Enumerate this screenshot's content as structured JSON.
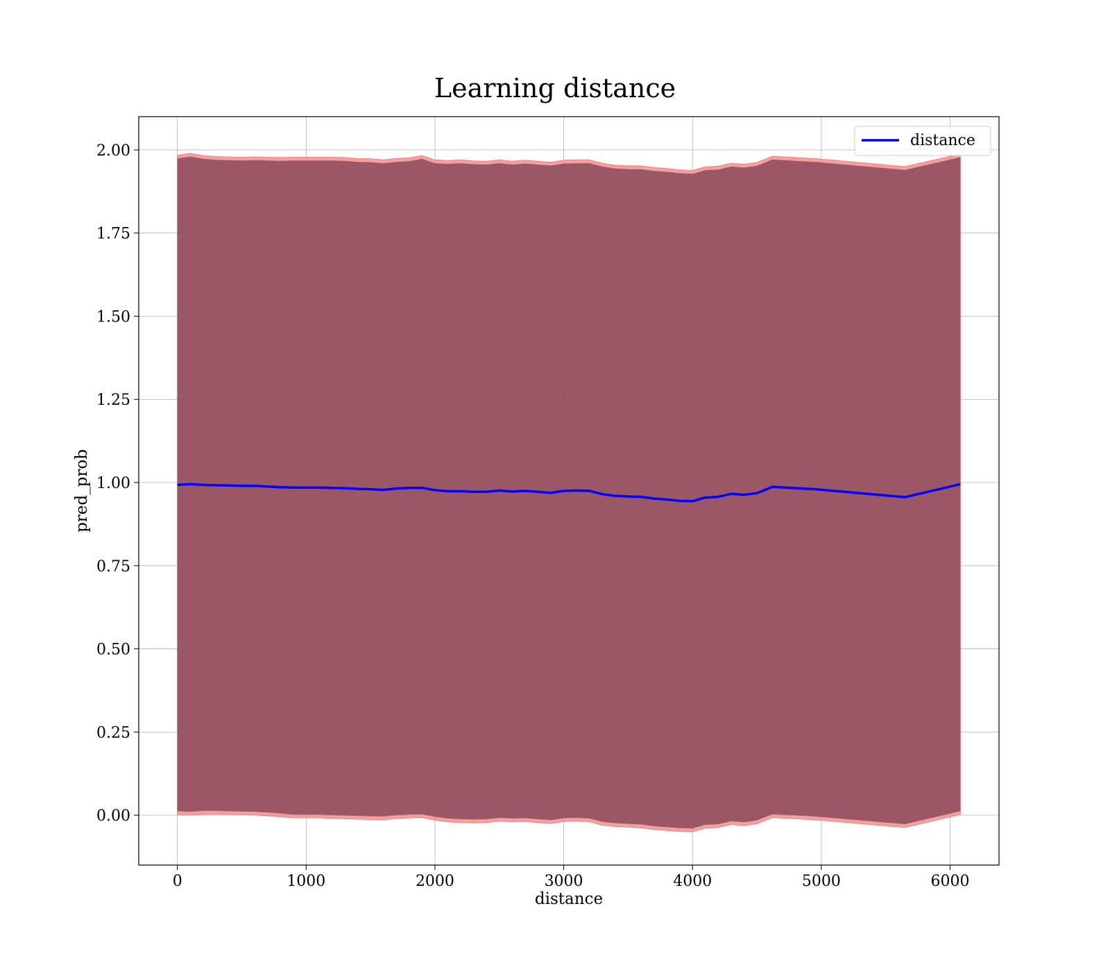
{
  "chart_data": {
    "type": "line",
    "title": "Learning distance",
    "xlabel": "distance",
    "ylabel": "pred_prob",
    "xlim": [
      -300,
      6380
    ],
    "ylim": [
      -0.15,
      2.1
    ],
    "xticks": [
      0,
      1000,
      2000,
      3000,
      4000,
      5000,
      6000
    ],
    "xtick_labels": [
      "0",
      "1000",
      "2000",
      "3000",
      "4000",
      "5000",
      "6000"
    ],
    "yticks": [
      0.0,
      0.25,
      0.5,
      0.75,
      1.0,
      1.25,
      1.5,
      1.75,
      2.0
    ],
    "ytick_labels": [
      "0.00",
      "0.25",
      "0.50",
      "0.75",
      "1.00",
      "1.25",
      "1.50",
      "1.75",
      "2.00"
    ],
    "grid": true,
    "legend": {
      "placement": "top-right",
      "entries": [
        "distance"
      ]
    },
    "colors": {
      "line": "#0000ff",
      "band_inner": "#8b4a5a",
      "band_outer": "#f08080"
    },
    "series": [
      {
        "name": "distance",
        "x": [
          0,
          100,
          200,
          300,
          400,
          500,
          600,
          700,
          800,
          900,
          1000,
          1100,
          1200,
          1300,
          1400,
          1500,
          1600,
          1700,
          1800,
          1900,
          2000,
          2100,
          2200,
          2300,
          2400,
          2500,
          2600,
          2700,
          2800,
          2900,
          3000,
          3100,
          3200,
          3300,
          3400,
          3500,
          3600,
          3700,
          3800,
          3900,
          4000,
          4100,
          4200,
          4300,
          4400,
          4500,
          4620,
          4950,
          5650,
          6080
        ],
        "y": [
          0.993,
          0.995,
          0.993,
          0.992,
          0.991,
          0.99,
          0.99,
          0.988,
          0.986,
          0.985,
          0.985,
          0.985,
          0.984,
          0.983,
          0.981,
          0.98,
          0.978,
          0.982,
          0.984,
          0.984,
          0.977,
          0.974,
          0.974,
          0.972,
          0.972,
          0.976,
          0.973,
          0.975,
          0.972,
          0.969,
          0.975,
          0.976,
          0.975,
          0.965,
          0.96,
          0.958,
          0.957,
          0.952,
          0.949,
          0.945,
          0.944,
          0.955,
          0.957,
          0.966,
          0.963,
          0.968,
          0.987,
          0.98,
          0.956,
          0.995
        ]
      }
    ],
    "bands": [
      {
        "kind": "outer",
        "lower": [
          0.002,
          0.0,
          0.003,
          0.004,
          0.003,
          0.002,
          0.001,
          -0.002,
          -0.005,
          -0.008,
          -0.008,
          -0.008,
          -0.01,
          -0.011,
          -0.012,
          -0.013,
          -0.014,
          -0.01,
          -0.008,
          -0.007,
          -0.015,
          -0.02,
          -0.022,
          -0.023,
          -0.022,
          -0.018,
          -0.02,
          -0.019,
          -0.022,
          -0.025,
          -0.019,
          -0.018,
          -0.02,
          -0.03,
          -0.034,
          -0.036,
          -0.038,
          -0.043,
          -0.046,
          -0.049,
          -0.05,
          -0.039,
          -0.037,
          -0.028,
          -0.031,
          -0.026,
          -0.007,
          -0.014,
          -0.037,
          0.002
        ],
        "upper": [
          1.984,
          1.99,
          1.983,
          1.98,
          1.979,
          1.978,
          1.979,
          1.978,
          1.977,
          1.978,
          1.978,
          1.978,
          1.978,
          1.977,
          1.974,
          1.973,
          1.97,
          1.974,
          1.976,
          1.983,
          1.97,
          1.968,
          1.97,
          1.967,
          1.966,
          1.97,
          1.966,
          1.969,
          1.966,
          1.963,
          1.969,
          1.97,
          1.97,
          1.96,
          1.954,
          1.952,
          1.952,
          1.947,
          1.944,
          1.94,
          1.938,
          1.949,
          1.951,
          1.96,
          1.957,
          1.962,
          1.981,
          1.974,
          1.95,
          1.988
        ]
      },
      {
        "kind": "inner",
        "lower": [
          0.012,
          0.01,
          0.013,
          0.013,
          0.012,
          0.011,
          0.01,
          0.008,
          0.005,
          0.002,
          0.002,
          0.002,
          0.0,
          -0.001,
          -0.002,
          -0.003,
          -0.004,
          0.0,
          0.002,
          0.003,
          -0.005,
          -0.01,
          -0.012,
          -0.013,
          -0.012,
          -0.008,
          -0.01,
          -0.009,
          -0.012,
          -0.015,
          -0.009,
          -0.008,
          -0.01,
          -0.02,
          -0.024,
          -0.026,
          -0.028,
          -0.033,
          -0.036,
          -0.039,
          -0.04,
          -0.029,
          -0.027,
          -0.018,
          -0.021,
          -0.016,
          0.003,
          -0.004,
          -0.027,
          0.012
        ],
        "upper": [
          1.974,
          1.98,
          1.973,
          1.97,
          1.969,
          1.968,
          1.969,
          1.968,
          1.967,
          1.968,
          1.968,
          1.968,
          1.968,
          1.967,
          1.964,
          1.963,
          1.96,
          1.964,
          1.966,
          1.973,
          1.96,
          1.958,
          1.96,
          1.957,
          1.956,
          1.96,
          1.956,
          1.959,
          1.956,
          1.953,
          1.959,
          1.96,
          1.96,
          1.95,
          1.944,
          1.942,
          1.942,
          1.937,
          1.934,
          1.93,
          1.928,
          1.939,
          1.941,
          1.95,
          1.947,
          1.952,
          1.971,
          1.964,
          1.94,
          1.978
        ]
      }
    ]
  }
}
